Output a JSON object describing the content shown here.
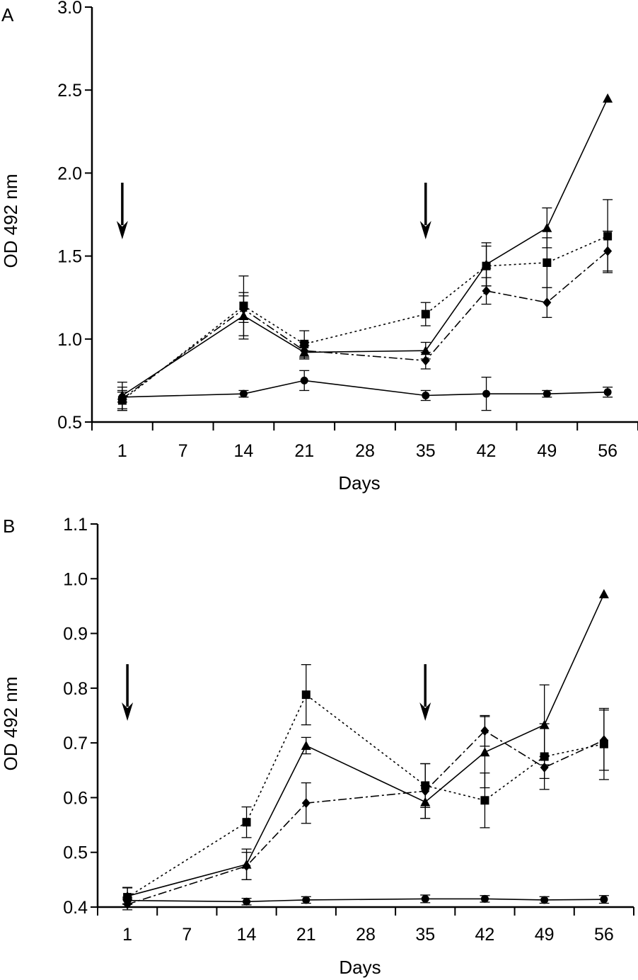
{
  "figure": {
    "panels": [
      "A",
      "B"
    ]
  },
  "chart_data": [
    {
      "type": "line",
      "panel_label": "A",
      "xlabel": "Days",
      "ylabel": "OD 492 nm",
      "categories": [
        "1",
        "7",
        "14",
        "21",
        "28",
        "35",
        "42",
        "49",
        "56"
      ],
      "ylim": [
        0.5,
        3.0
      ],
      "yticks": [
        "0.5",
        "1.0",
        "1.5",
        "2.0",
        "2.5",
        "3.0"
      ],
      "arrows_at": [
        "1",
        "35"
      ],
      "grid": false,
      "legend": "none",
      "series": [
        {
          "name": "triangle",
          "marker": "triangle",
          "line": "solid",
          "x": [
            "1",
            "14",
            "21",
            "35",
            "42",
            "49",
            "56"
          ],
          "values": [
            0.66,
            1.14,
            0.92,
            0.93,
            1.45,
            1.67,
            2.45
          ],
          "errors": [
            0.08,
            0.14,
            0.04,
            0.05,
            0.13,
            0.12,
            0
          ]
        },
        {
          "name": "square",
          "marker": "square",
          "line": "dotted",
          "x": [
            "1",
            "14",
            "21",
            "35",
            "42",
            "49",
            "56"
          ],
          "values": [
            0.63,
            1.2,
            0.97,
            1.15,
            1.44,
            1.46,
            1.62
          ],
          "errors": [
            0.06,
            0.18,
            0.08,
            0.07,
            0.12,
            0.15,
            0.22
          ]
        },
        {
          "name": "diamond",
          "marker": "diamond",
          "line": "dashdot",
          "x": [
            "1",
            "14",
            "21",
            "35",
            "42",
            "49",
            "56"
          ],
          "values": [
            0.64,
            1.18,
            0.93,
            0.87,
            1.29,
            1.22,
            1.53
          ],
          "errors": [
            0.07,
            0.08,
            0.05,
            0.05,
            0.08,
            0.09,
            0.12
          ]
        },
        {
          "name": "circle",
          "marker": "circle",
          "line": "solid",
          "x": [
            "1",
            "14",
            "21",
            "35",
            "42",
            "49",
            "56"
          ],
          "values": [
            0.65,
            0.67,
            0.75,
            0.66,
            0.67,
            0.67,
            0.68
          ],
          "errors": [
            0.03,
            0.02,
            0.06,
            0.03,
            0.1,
            0.02,
            0.03
          ]
        }
      ]
    },
    {
      "type": "line",
      "panel_label": "B",
      "xlabel": "Days",
      "ylabel": "OD 492 nm",
      "categories": [
        "1",
        "7",
        "14",
        "21",
        "28",
        "35",
        "42",
        "49",
        "56"
      ],
      "ylim": [
        0.4,
        1.1
      ],
      "yticks": [
        "0.4",
        "0.5",
        "0.6",
        "0.7",
        "0.8",
        "0.9",
        "1.0",
        "1.1"
      ],
      "arrows_at": [
        "1",
        "35"
      ],
      "grid": false,
      "legend": "none",
      "series": [
        {
          "name": "triangle",
          "marker": "triangle",
          "line": "solid",
          "x": [
            "1",
            "14",
            "21",
            "35",
            "42",
            "49",
            "56"
          ],
          "values": [
            0.42,
            0.478,
            0.695,
            0.592,
            0.683,
            0.733,
            0.972
          ],
          "errors": [
            0.015,
            0.028,
            0.015,
            0.03,
            0.065,
            0.073,
            0
          ]
        },
        {
          "name": "square",
          "marker": "square",
          "line": "dotted",
          "x": [
            "1",
            "14",
            "21",
            "35",
            "42",
            "49",
            "56"
          ],
          "values": [
            0.418,
            0.555,
            0.788,
            0.622,
            0.595,
            0.675,
            0.698
          ],
          "errors": [
            0.018,
            0.028,
            0.055,
            0.04,
            0.05,
            0.06,
            0.065
          ]
        },
        {
          "name": "diamond",
          "marker": "diamond",
          "line": "dashdot",
          "x": [
            "1",
            "14",
            "21",
            "35",
            "42",
            "49",
            "56"
          ],
          "values": [
            0.405,
            0.475,
            0.59,
            0.612,
            0.722,
            0.655,
            0.705
          ],
          "errors": [
            0.01,
            0.025,
            0.037,
            0.05,
            0.028,
            0.02,
            0.055
          ]
        },
        {
          "name": "circle",
          "marker": "circle",
          "line": "solid",
          "x": [
            "1",
            "14",
            "21",
            "35",
            "42",
            "49",
            "56"
          ],
          "values": [
            0.412,
            0.41,
            0.413,
            0.415,
            0.415,
            0.413,
            0.414
          ],
          "errors": [
            0.006,
            0.006,
            0.006,
            0.007,
            0.006,
            0.006,
            0.007
          ]
        }
      ]
    }
  ]
}
